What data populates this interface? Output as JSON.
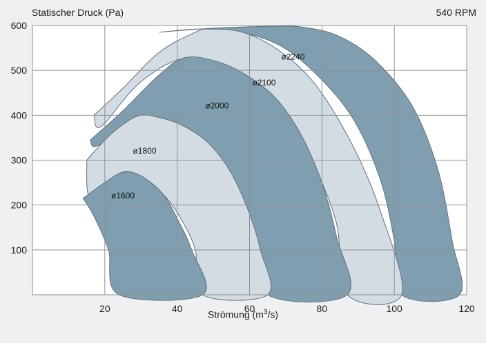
{
  "chart_data": {
    "type": "area",
    "title": "",
    "rpm_label": "540 RPM",
    "ylabel": "Statischer Druck (Pa)",
    "xlabel_prefix": "Strömung (m",
    "xlabel_sup": "3",
    "xlabel_suffix": "/s)",
    "xlim": [
      0,
      120
    ],
    "ylim": [
      0,
      600
    ],
    "x_ticks": [
      20,
      40,
      60,
      80,
      100,
      120
    ],
    "y_ticks": [
      100,
      200,
      300,
      400,
      500,
      600
    ],
    "grid": true,
    "series": [
      {
        "name": "ø2240",
        "fill": "#7f9fb1",
        "label_at": [
          72,
          530
        ],
        "outline": [
          [
            35,
            585
          ],
          [
            50,
            594
          ],
          [
            65,
            598
          ],
          [
            75,
            596
          ],
          [
            85,
            575
          ],
          [
            95,
            520
          ],
          [
            105,
            420
          ],
          [
            112,
            280
          ],
          [
            116,
            120
          ],
          [
            118,
            0
          ],
          [
            102,
            0
          ],
          [
            100,
            120
          ],
          [
            96,
            260
          ],
          [
            88,
            400
          ],
          [
            76,
            510
          ],
          [
            65,
            568
          ],
          [
            50,
            592
          ],
          [
            35,
            585
          ]
        ]
      },
      {
        "name": "ø2100",
        "fill": "#d3dce2",
        "label_at": [
          64,
          473
        ],
        "outline": [
          [
            17,
            400
          ],
          [
            25,
            460
          ],
          [
            35,
            540
          ],
          [
            45,
            585
          ],
          [
            49,
            592
          ],
          [
            58,
            585
          ],
          [
            68,
            545
          ],
          [
            78,
            470
          ],
          [
            88,
            340
          ],
          [
            96,
            190
          ],
          [
            102,
            0
          ],
          [
            87,
            0
          ],
          [
            84,
            160
          ],
          [
            77,
            300
          ],
          [
            67,
            420
          ],
          [
            56,
            490
          ],
          [
            43,
            528
          ],
          [
            30,
            475
          ],
          [
            19,
            375
          ],
          [
            17,
            400
          ]
        ]
      },
      {
        "name": "ø2000",
        "fill": "#7f9fb1",
        "label_at": [
          51,
          421
        ],
        "outline": [
          [
            16,
            345
          ],
          [
            25,
            410
          ],
          [
            35,
            490
          ],
          [
            42,
            528
          ],
          [
            50,
            522
          ],
          [
            58,
            495
          ],
          [
            67,
            440
          ],
          [
            74,
            360
          ],
          [
            80,
            250
          ],
          [
            84,
            130
          ],
          [
            87,
            0
          ],
          [
            65,
            0
          ],
          [
            62,
            130
          ],
          [
            57,
            230
          ],
          [
            50,
            320
          ],
          [
            42,
            375
          ],
          [
            31,
            395
          ],
          [
            21,
            345
          ],
          [
            17,
            330
          ],
          [
            16,
            345
          ]
        ]
      },
      {
        "name": "ø1800",
        "fill": "#d3dce2",
        "label_at": [
          31,
          321
        ],
        "outline": [
          [
            15,
            300
          ],
          [
            22,
            360
          ],
          [
            29,
            398
          ],
          [
            35,
            395
          ],
          [
            42,
            375
          ],
          [
            49,
            335
          ],
          [
            55,
            270
          ],
          [
            60,
            180
          ],
          [
            63,
            100
          ],
          [
            65,
            0
          ],
          [
            47,
            0
          ],
          [
            45,
            100
          ],
          [
            41,
            170
          ],
          [
            36,
            225
          ],
          [
            29,
            268
          ],
          [
            24,
            270
          ],
          [
            16,
            215
          ],
          [
            15,
            300
          ]
        ]
      },
      {
        "name": "ø1600",
        "fill": "#7f9fb1",
        "label_at": [
          25,
          221
        ],
        "outline": [
          [
            14,
            215
          ],
          [
            20,
            250
          ],
          [
            25,
            273
          ],
          [
            30,
            265
          ],
          [
            36,
            225
          ],
          [
            40,
            170
          ],
          [
            44,
            100
          ],
          [
            47,
            0
          ],
          [
            24,
            0
          ],
          [
            21,
            100
          ],
          [
            17,
            175
          ],
          [
            14,
            215
          ]
        ]
      }
    ]
  }
}
